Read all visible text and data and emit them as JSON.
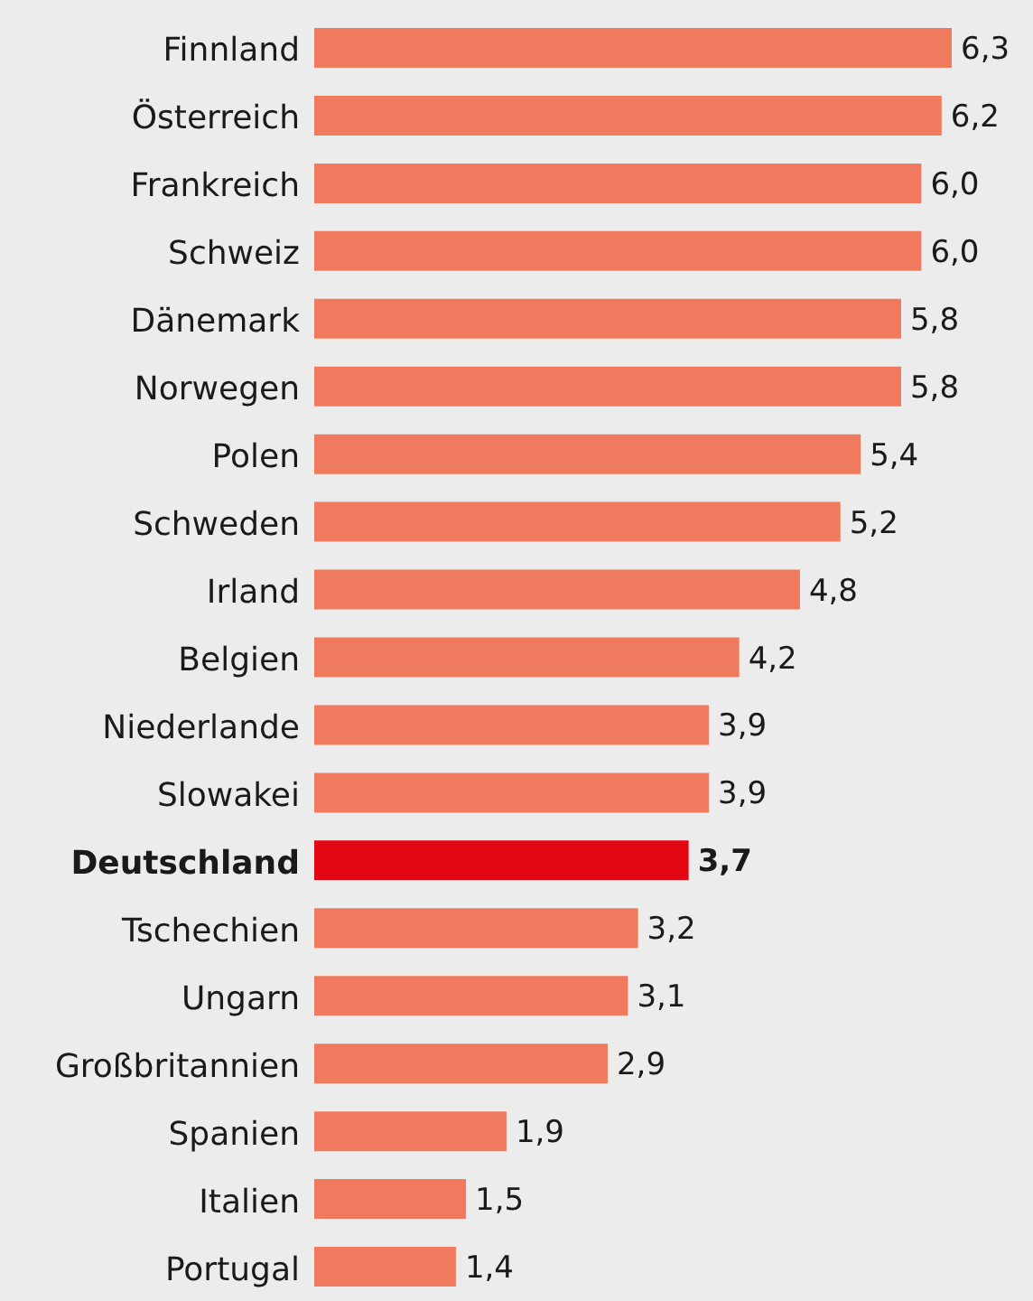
{
  "chart_data": {
    "type": "bar",
    "orientation": "horizontal",
    "categories": [
      "Finnland",
      "Österreich",
      "Frankreich",
      "Schweiz",
      "Dänemark",
      "Norwegen",
      "Polen",
      "Schweden",
      "Irland",
      "Belgien",
      "Niederlande",
      "Slowakei",
      "Deutschland",
      "Tschechien",
      "Ungarn",
      "Großbritannien",
      "Spanien",
      "Italien",
      "Portugal"
    ],
    "values": [
      6.3,
      6.2,
      6.0,
      6.0,
      5.8,
      5.8,
      5.4,
      5.2,
      4.8,
      4.2,
      3.9,
      3.9,
      3.7,
      3.2,
      3.1,
      2.9,
      1.9,
      1.5,
      1.4
    ],
    "value_labels": [
      "6,3",
      "6,2",
      "6,0",
      "6,0",
      "5,8",
      "5,8",
      "5,4",
      "5,2",
      "4,8",
      "4,2",
      "3,9",
      "3,9",
      "3,7",
      "3,2",
      "3,1",
      "2,9",
      "1,9",
      "1,5",
      "1,4"
    ],
    "colors": [
      "#ef7a5d",
      "#ef7a5d",
      "#ef7a5d",
      "#ef7a5d",
      "#ef7a5d",
      "#ef7a5d",
      "#ef7a5d",
      "#ef7a5d",
      "#ef7a5d",
      "#ef7a5d",
      "#ef7a5d",
      "#ef7a5d",
      "#e30613",
      "#ef7a5d",
      "#ef7a5d",
      "#ef7a5d",
      "#ef7a5d",
      "#ef7a5d",
      "#ef7a5d"
    ]
  }
}
